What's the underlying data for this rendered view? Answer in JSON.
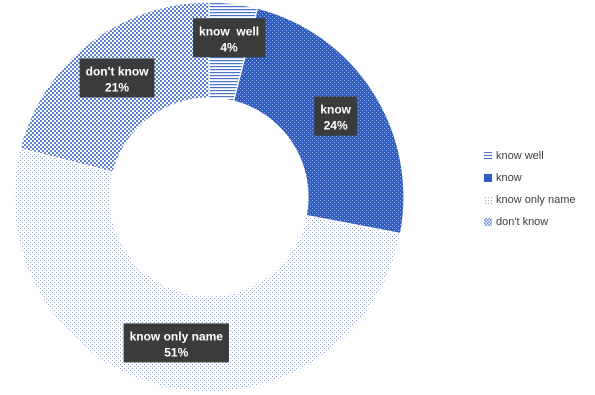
{
  "chart_data": {
    "type": "pie",
    "subtype": "doughnut",
    "legend_position": "right",
    "categories": [
      "know  well",
      "know",
      "know only name",
      "don't know"
    ],
    "values": [
      4,
      24,
      51,
      21
    ],
    "data_labels": [
      {
        "category": "know  well",
        "value": "4%"
      },
      {
        "category": "know",
        "value": "24%"
      },
      {
        "category": "know only name",
        "value": "51%"
      },
      {
        "category": "don't know",
        "value": "21%"
      }
    ],
    "colors": [
      "#4a73c9",
      "#2f5fc4",
      "#8fa6d8",
      "#5a82d0"
    ],
    "patterns": [
      "horizontal-lines",
      "dense-dots",
      "sparse-dots",
      "checker"
    ]
  }
}
